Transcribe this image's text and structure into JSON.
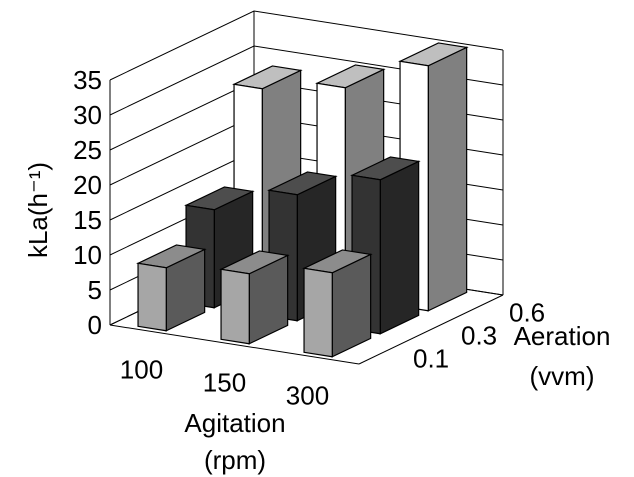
{
  "chart_data": {
    "type": "bar3d",
    "y_label": "kLa(h⁻¹)",
    "x_label": "Agitation",
    "x_unit": "(rpm)",
    "z_label": "Aeration",
    "z_unit": "(vvm)",
    "categories": [
      "100",
      "150",
      "300"
    ],
    "ylim": [
      0,
      35
    ],
    "yticks": [
      0,
      5,
      10,
      15,
      20,
      25,
      30,
      35
    ],
    "grid": true,
    "series": [
      {
        "name": "0.1",
        "color": "#a6a6a6",
        "side_color": "#5a5a5a",
        "top_color": "#8c8c8c",
        "values": [
          9,
          10,
          12
        ]
      },
      {
        "name": "0.3",
        "color": "#333333",
        "side_color": "#262626",
        "top_color": "#4d4d4d",
        "values": [
          14,
          18,
          22
        ]
      },
      {
        "name": "0.6",
        "color": "#ffffff",
        "side_color": "#808080",
        "top_color": "#bfbfbf",
        "values": [
          28,
          30,
          35
        ]
      }
    ]
  }
}
